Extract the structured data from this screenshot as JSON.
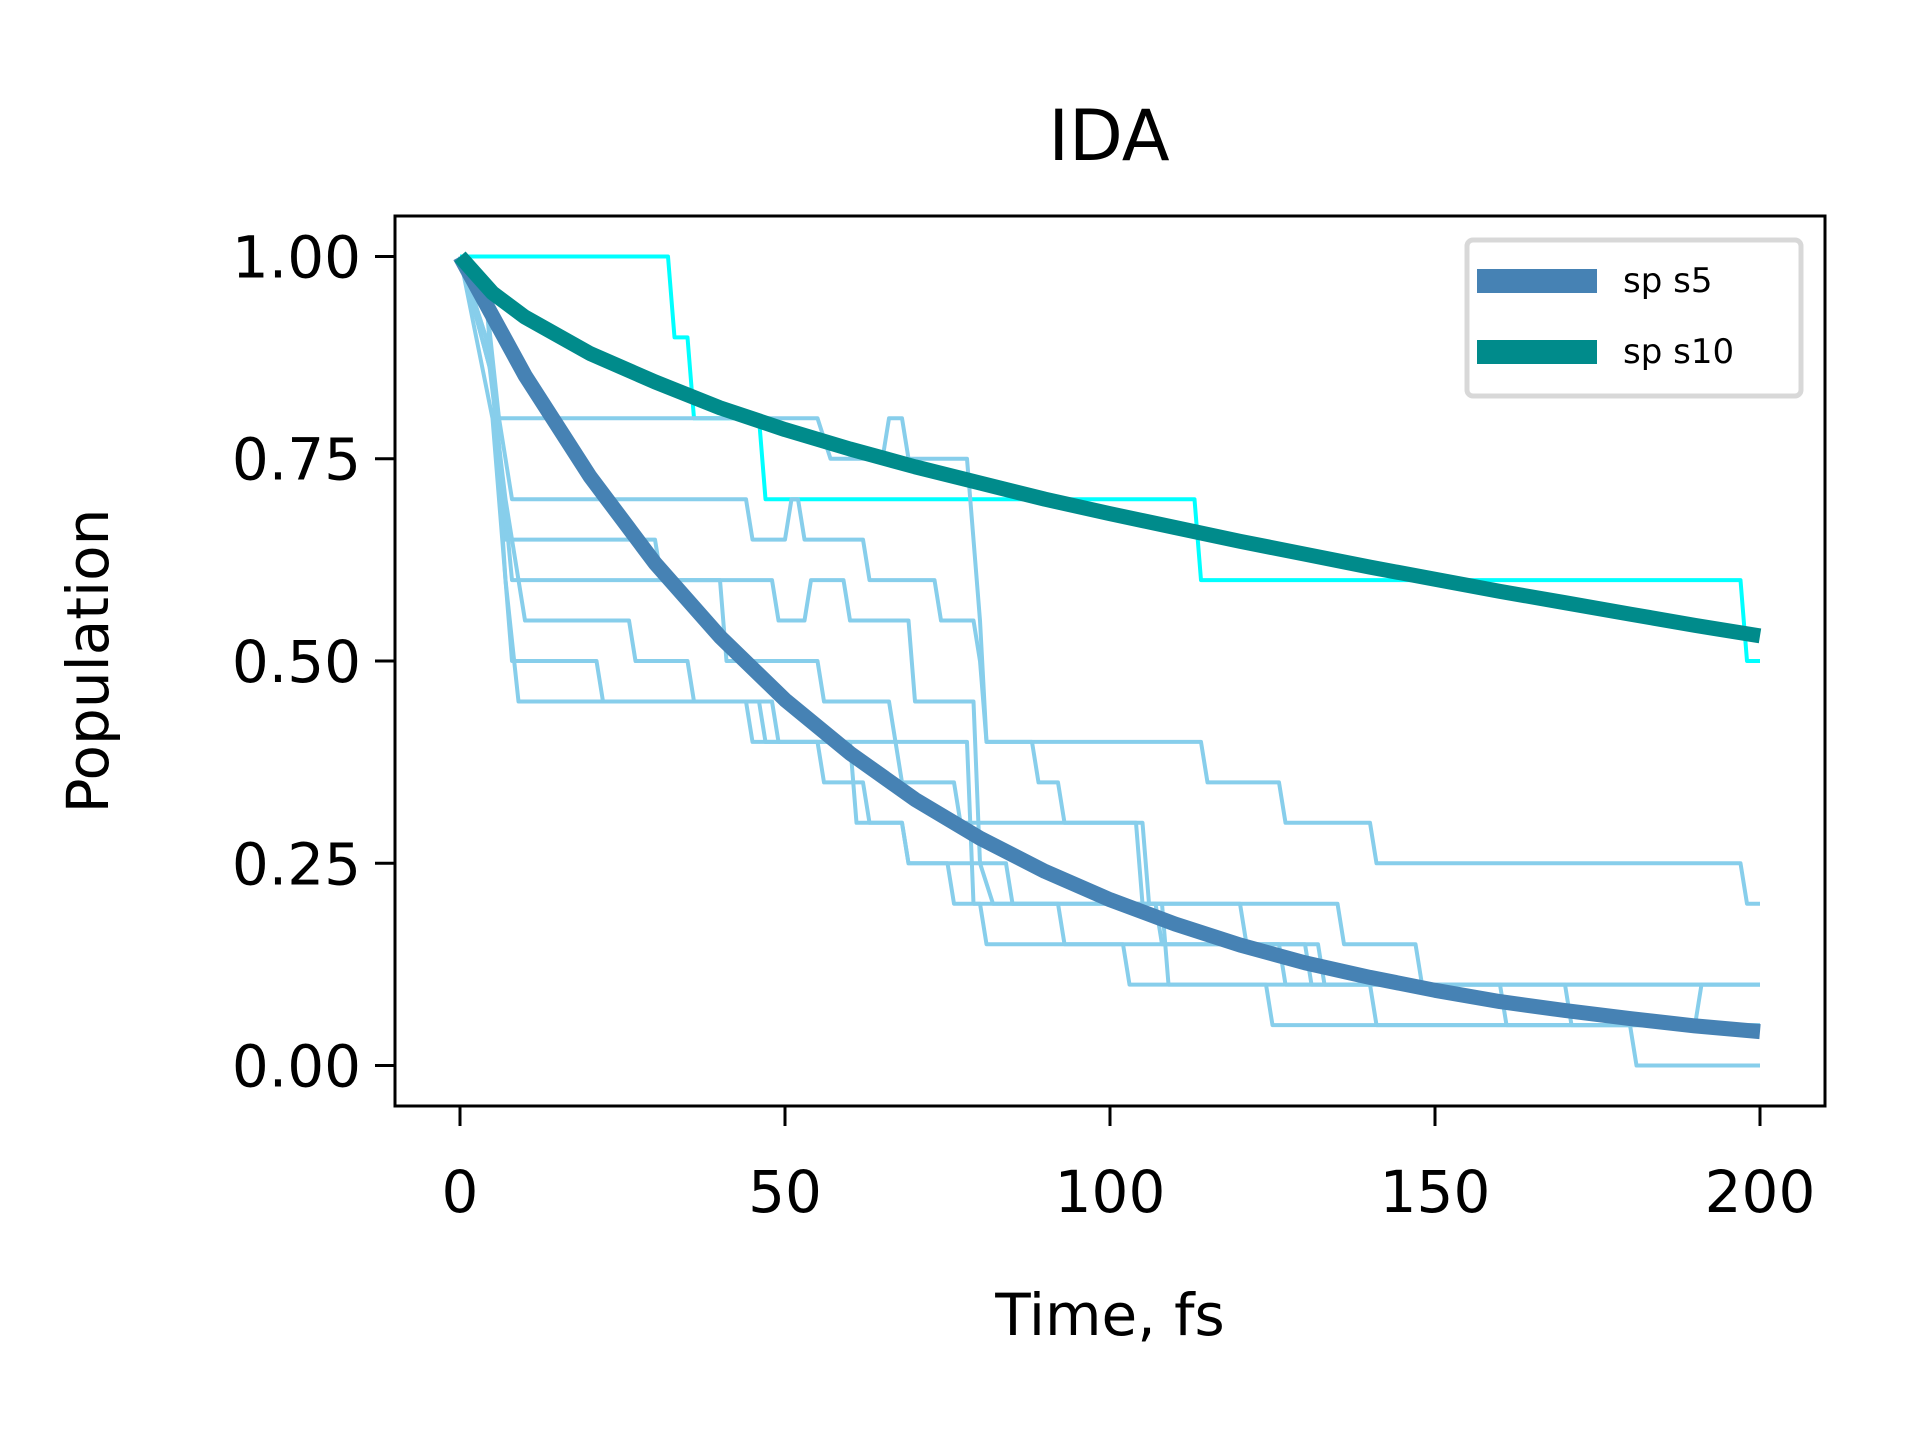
{
  "chart_data": {
    "type": "line",
    "title": "IDA",
    "xlabel": "Time, fs",
    "ylabel": "Population",
    "xlim": [
      -10,
      210
    ],
    "ylim": [
      -0.05,
      1.05
    ],
    "xticks": [
      0,
      50,
      100,
      150,
      200
    ],
    "yticks": [
      0.0,
      0.25,
      0.5,
      0.75,
      1.0
    ],
    "xtick_labels": [
      "0",
      "50",
      "100",
      "150",
      "200"
    ],
    "ytick_labels": [
      "0.00",
      "0.25",
      "0.50",
      "0.75",
      "1.00"
    ],
    "grid": false,
    "legend_position": "upper right",
    "series": [
      {
        "name": "sp s5",
        "color": "#4682b4",
        "style": "smooth",
        "points": [
          [
            0,
            1.0
          ],
          [
            10,
            0.853
          ],
          [
            20,
            0.728
          ],
          [
            30,
            0.621
          ],
          [
            40,
            0.53
          ],
          [
            50,
            0.452
          ],
          [
            60,
            0.386
          ],
          [
            70,
            0.329
          ],
          [
            80,
            0.281
          ],
          [
            90,
            0.24
          ],
          [
            100,
            0.205
          ],
          [
            110,
            0.175
          ],
          [
            120,
            0.149
          ],
          [
            130,
            0.127
          ],
          [
            140,
            0.109
          ],
          [
            150,
            0.093
          ],
          [
            160,
            0.079
          ],
          [
            170,
            0.068
          ],
          [
            180,
            0.058
          ],
          [
            190,
            0.049
          ],
          [
            200,
            0.042
          ]
        ]
      },
      {
        "name": "sp s10",
        "color": "#008b8b",
        "style": "smooth",
        "points": [
          [
            0,
            1.0
          ],
          [
            5,
            0.955
          ],
          [
            10,
            0.925
          ],
          [
            20,
            0.88
          ],
          [
            30,
            0.845
          ],
          [
            40,
            0.813
          ],
          [
            50,
            0.786
          ],
          [
            60,
            0.762
          ],
          [
            70,
            0.74
          ],
          [
            80,
            0.72
          ],
          [
            90,
            0.7
          ],
          [
            100,
            0.682
          ],
          [
            110,
            0.665
          ],
          [
            120,
            0.648
          ],
          [
            130,
            0.632
          ],
          [
            140,
            0.616
          ],
          [
            150,
            0.601
          ],
          [
            160,
            0.586
          ],
          [
            170,
            0.572
          ],
          [
            180,
            0.558
          ],
          [
            190,
            0.544
          ],
          [
            200,
            0.531
          ]
        ]
      },
      {
        "color": "#00ffff",
        "style": "step",
        "points": [
          [
            0,
            1.0
          ],
          [
            32,
            1.0
          ],
          [
            33,
            0.9
          ],
          [
            35,
            0.9
          ],
          [
            36,
            0.8
          ],
          [
            46,
            0.8
          ],
          [
            47,
            0.7
          ],
          [
            113,
            0.7
          ],
          [
            114,
            0.6
          ],
          [
            197,
            0.6
          ],
          [
            198,
            0.5
          ],
          [
            200,
            0.5
          ]
        ]
      },
      {
        "color": "#87ceeb",
        "style": "step",
        "points": [
          [
            0,
            1.0
          ],
          [
            4,
            0.95
          ],
          [
            6,
            0.8
          ],
          [
            55,
            0.8
          ],
          [
            57,
            0.75
          ],
          [
            65,
            0.75
          ],
          [
            66,
            0.8
          ],
          [
            68,
            0.8
          ],
          [
            69,
            0.75
          ],
          [
            78,
            0.75
          ],
          [
            80,
            0.55
          ],
          [
            81,
            0.4
          ],
          [
            88,
            0.4
          ],
          [
            89,
            0.35
          ],
          [
            92,
            0.35
          ],
          [
            93,
            0.3
          ],
          [
            105,
            0.3
          ],
          [
            106,
            0.2
          ],
          [
            120,
            0.2
          ],
          [
            121,
            0.15
          ],
          [
            130,
            0.15
          ],
          [
            131,
            0.1
          ],
          [
            200,
            0.1
          ]
        ]
      },
      {
        "color": "#87ceeb",
        "style": "step",
        "points": [
          [
            0,
            1.0
          ],
          [
            4,
            0.9
          ],
          [
            6,
            0.8
          ],
          [
            8,
            0.7
          ],
          [
            44,
            0.7
          ],
          [
            45,
            0.65
          ],
          [
            50,
            0.65
          ],
          [
            51,
            0.7
          ],
          [
            52,
            0.7
          ],
          [
            53,
            0.65
          ],
          [
            62,
            0.65
          ],
          [
            63,
            0.6
          ],
          [
            73,
            0.6
          ],
          [
            74,
            0.55
          ],
          [
            79,
            0.55
          ],
          [
            80,
            0.5
          ],
          [
            81,
            0.4
          ],
          [
            114,
            0.4
          ],
          [
            115,
            0.35
          ],
          [
            126,
            0.35
          ],
          [
            127,
            0.3
          ],
          [
            140,
            0.3
          ],
          [
            141,
            0.25
          ],
          [
            197,
            0.25
          ],
          [
            198,
            0.2
          ],
          [
            200,
            0.2
          ]
        ]
      },
      {
        "color": "#87ceeb",
        "style": "step",
        "points": [
          [
            0,
            1.0
          ],
          [
            4,
            0.95
          ],
          [
            7,
            0.65
          ],
          [
            30,
            0.65
          ],
          [
            31,
            0.6
          ],
          [
            40,
            0.6
          ],
          [
            41,
            0.5
          ],
          [
            55,
            0.5
          ],
          [
            56,
            0.45
          ],
          [
            66,
            0.45
          ],
          [
            67,
            0.4
          ],
          [
            78,
            0.4
          ],
          [
            79,
            0.2
          ],
          [
            135,
            0.2
          ],
          [
            136,
            0.15
          ],
          [
            147,
            0.15
          ],
          [
            148,
            0.1
          ],
          [
            170,
            0.1
          ],
          [
            171,
            0.05
          ],
          [
            180,
            0.05
          ],
          [
            181,
            0.0
          ],
          [
            200,
            0.0
          ]
        ]
      },
      {
        "color": "#87ceeb",
        "style": "step",
        "points": [
          [
            0,
            1.0
          ],
          [
            5,
            0.85
          ],
          [
            8,
            0.6
          ],
          [
            48,
            0.6
          ],
          [
            49,
            0.55
          ],
          [
            53,
            0.55
          ],
          [
            54,
            0.6
          ],
          [
            59,
            0.6
          ],
          [
            60,
            0.55
          ],
          [
            69,
            0.55
          ],
          [
            70,
            0.45
          ],
          [
            79,
            0.45
          ],
          [
            80,
            0.25
          ],
          [
            82,
            0.2
          ],
          [
            107,
            0.2
          ],
          [
            108,
            0.15
          ],
          [
            126,
            0.15
          ],
          [
            127,
            0.1
          ],
          [
            160,
            0.1
          ],
          [
            161,
            0.05
          ],
          [
            200,
            0.05
          ]
        ]
      },
      {
        "color": "#87ceeb",
        "style": "step",
        "points": [
          [
            0,
            1.0
          ],
          [
            5,
            0.8
          ],
          [
            8,
            0.5
          ],
          [
            21,
            0.5
          ],
          [
            22,
            0.45
          ],
          [
            48,
            0.45
          ],
          [
            49,
            0.4
          ],
          [
            55,
            0.4
          ],
          [
            56,
            0.35
          ],
          [
            62,
            0.35
          ],
          [
            63,
            0.3
          ],
          [
            68,
            0.3
          ],
          [
            69,
            0.25
          ],
          [
            75,
            0.25
          ],
          [
            76,
            0.2
          ],
          [
            80,
            0.2
          ],
          [
            81,
            0.15
          ],
          [
            102,
            0.15
          ],
          [
            103,
            0.1
          ],
          [
            200,
            0.1
          ]
        ]
      },
      {
        "color": "#87ceeb",
        "style": "step",
        "points": [
          [
            0,
            1.0
          ],
          [
            4,
            0.9
          ],
          [
            7,
            0.7
          ],
          [
            10,
            0.55
          ],
          [
            26,
            0.55
          ],
          [
            27,
            0.5
          ],
          [
            35,
            0.5
          ],
          [
            36,
            0.45
          ],
          [
            44,
            0.45
          ],
          [
            45,
            0.4
          ],
          [
            60,
            0.4
          ],
          [
            61,
            0.3
          ],
          [
            68,
            0.3
          ],
          [
            69,
            0.25
          ],
          [
            84,
            0.25
          ],
          [
            85,
            0.2
          ],
          [
            92,
            0.2
          ],
          [
            93,
            0.15
          ],
          [
            132,
            0.15
          ],
          [
            133,
            0.1
          ],
          [
            140,
            0.1
          ],
          [
            141,
            0.05
          ],
          [
            190,
            0.05
          ],
          [
            191,
            0.1
          ],
          [
            200,
            0.1
          ]
        ]
      },
      {
        "color": "#87ceeb",
        "style": "step",
        "points": [
          [
            0,
            1.0
          ],
          [
            5,
            0.85
          ],
          [
            7,
            0.6
          ],
          [
            9,
            0.45
          ],
          [
            46,
            0.45
          ],
          [
            47,
            0.4
          ],
          [
            67,
            0.4
          ],
          [
            68,
            0.35
          ],
          [
            76,
            0.35
          ],
          [
            77,
            0.3
          ],
          [
            104,
            0.3
          ],
          [
            105,
            0.2
          ],
          [
            108,
            0.2
          ],
          [
            109,
            0.1
          ],
          [
            124,
            0.1
          ],
          [
            125,
            0.05
          ],
          [
            200,
            0.05
          ]
        ]
      }
    ]
  }
}
